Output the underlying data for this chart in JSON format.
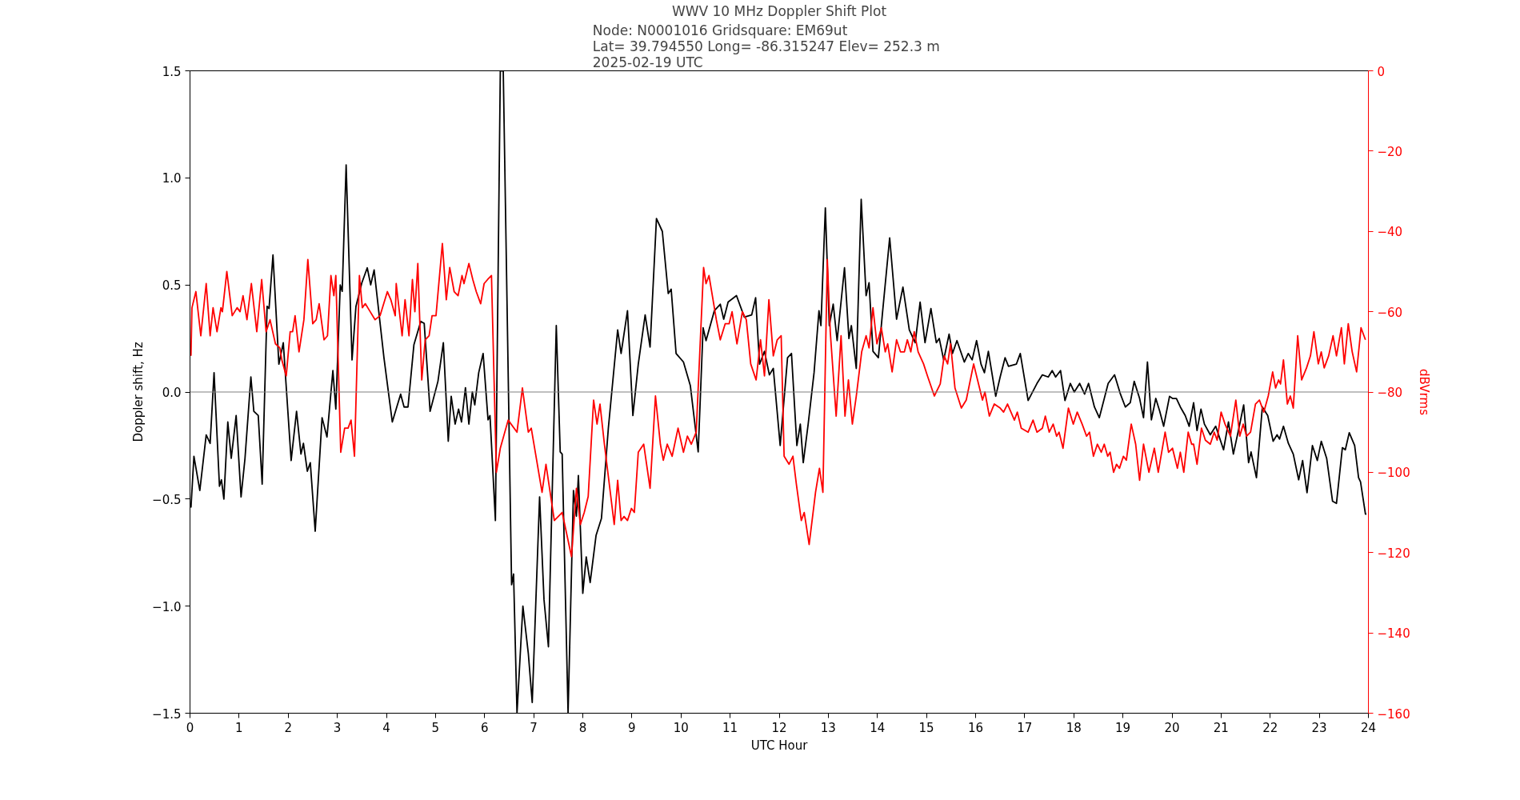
{
  "chart_data": {
    "type": "line",
    "title": "WWV 10 MHz Doppler Shift Plot",
    "subtitle": "Node:  N0001016     Gridsquare:  EM69ut\nLat= 39.794550    Long= -86.315247    Elev= 252.3 m\n2025-02-19  UTC",
    "xlabel": "UTC Hour",
    "ylabel": "Doppler shift, Hz",
    "y2label": "dBVrms",
    "xlim": [
      0,
      24
    ],
    "xticks": [
      0,
      1,
      2,
      3,
      4,
      5,
      6,
      7,
      8,
      9,
      10,
      11,
      12,
      13,
      14,
      15,
      16,
      17,
      18,
      19,
      20,
      21,
      22,
      23,
      24
    ],
    "ylim": [
      -1.5,
      1.5
    ],
    "yticks": [
      {
        "value": -1.5,
        "label": "−1.5"
      },
      {
        "value": -1.0,
        "label": "−1.0"
      },
      {
        "value": -0.5,
        "label": "−0.5"
      },
      {
        "value": 0.0,
        "label": "0.0"
      },
      {
        "value": 0.5,
        "label": "0.5"
      },
      {
        "value": 1.0,
        "label": "1.0"
      },
      {
        "value": 1.5,
        "label": "1.5"
      }
    ],
    "y2lim": [
      -160,
      0
    ],
    "y2ticks": [
      {
        "value": -160,
        "label": "−160"
      },
      {
        "value": -140,
        "label": "−140"
      },
      {
        "value": -120,
        "label": "−120"
      },
      {
        "value": -100,
        "label": "−100"
      },
      {
        "value": -80,
        "label": "−80"
      },
      {
        "value": -60,
        "label": "−60"
      },
      {
        "value": -40,
        "label": "−40"
      },
      {
        "value": -20,
        "label": "−20"
      },
      0
    ],
    "grid": false,
    "line_style": "solid",
    "marker": "none",
    "ref_lines": [
      {
        "axis": "y",
        "value": 0,
        "color": "#808080"
      }
    ],
    "series": [
      {
        "color": "#000000",
        "x": [
          0.02,
          0.08,
          0.2,
          0.33,
          0.41,
          0.49,
          0.6,
          0.64,
          0.69,
          0.77,
          0.84,
          0.94,
          1.04,
          1.12,
          1.24,
          1.3,
          1.39,
          1.47,
          1.57,
          1.61,
          1.69,
          1.81,
          1.9,
          2.06,
          2.17,
          2.26,
          2.31,
          2.39,
          2.45,
          2.55,
          2.69,
          2.79,
          2.91,
          2.97,
          3.06,
          3.1,
          3.18,
          3.3,
          3.38,
          3.5,
          3.61,
          3.68,
          3.75,
          3.95,
          4.12,
          4.29,
          4.36,
          4.44,
          4.56,
          4.7,
          4.77,
          4.89,
          5.05,
          5.16,
          5.26,
          5.32,
          5.4,
          5.47,
          5.53,
          5.61,
          5.68,
          5.75,
          5.8,
          5.88,
          5.97,
          6.07,
          6.11,
          6.22,
          6.32,
          6.38,
          6.55,
          6.59,
          6.66,
          6.78,
          6.89,
          6.97,
          7.12,
          7.21,
          7.3,
          7.46,
          7.54,
          7.58,
          7.7,
          7.81,
          7.87,
          7.91,
          8.0,
          8.07,
          8.15,
          8.27,
          8.38,
          8.52,
          8.71,
          8.78,
          8.91,
          9.02,
          9.13,
          9.27,
          9.37,
          9.5,
          9.62,
          9.74,
          9.8,
          9.9,
          10.05,
          10.19,
          10.35,
          10.45,
          10.51,
          10.68,
          10.8,
          10.87,
          10.96,
          11.13,
          11.29,
          11.44,
          11.52,
          11.6,
          11.7,
          11.8,
          11.88,
          12.02,
          12.17,
          12.25,
          12.36,
          12.43,
          12.49,
          12.59,
          12.71,
          12.81,
          12.85,
          12.94,
          13.02,
          13.1,
          13.18,
          13.33,
          13.42,
          13.47,
          13.57,
          13.67,
          13.77,
          13.83,
          13.91,
          14.02,
          14.1,
          14.25,
          14.39,
          14.52,
          14.65,
          14.77,
          14.87,
          14.97,
          15.09,
          15.2,
          15.26,
          15.35,
          15.46,
          15.53,
          15.62,
          15.77,
          15.85,
          15.93,
          16.02,
          16.11,
          16.18,
          16.26,
          16.41,
          16.5,
          16.6,
          16.67,
          16.83,
          16.91,
          17.07,
          17.25,
          17.36,
          17.48,
          17.56,
          17.63,
          17.73,
          17.82,
          17.93,
          18.01,
          18.12,
          18.22,
          18.3,
          18.42,
          18.52,
          18.7,
          18.83,
          18.95,
          19.05,
          19.15,
          19.23,
          19.34,
          19.42,
          19.5,
          19.58,
          19.67,
          19.75,
          19.83,
          19.95,
          20.01,
          20.09,
          20.17,
          20.27,
          20.35,
          20.44,
          20.51,
          20.59,
          20.66,
          20.78,
          20.89,
          21.05,
          21.15,
          21.25,
          21.38,
          21.46,
          21.56,
          21.61,
          21.72,
          21.84,
          21.95,
          22.06,
          22.14,
          22.19,
          22.27,
          22.37,
          22.47,
          22.58,
          22.66,
          22.75,
          22.86,
          22.96,
          23.04,
          23.15,
          23.27,
          23.35,
          23.47,
          23.53,
          23.61,
          23.72,
          23.8,
          23.84,
          23.94,
          23.96
        ],
        "values": [
          -0.54,
          -0.3,
          -0.46,
          -0.2,
          -0.24,
          0.09,
          -0.44,
          -0.41,
          -0.5,
          -0.14,
          -0.31,
          -0.11,
          -0.49,
          -0.31,
          0.07,
          -0.09,
          -0.11,
          -0.43,
          0.4,
          0.39,
          0.64,
          0.13,
          0.23,
          -0.32,
          -0.09,
          -0.29,
          -0.24,
          -0.37,
          -0.33,
          -0.65,
          -0.12,
          -0.21,
          0.1,
          -0.08,
          0.5,
          0.47,
          1.06,
          0.15,
          0.4,
          0.51,
          0.58,
          0.5,
          0.57,
          0.16,
          -0.14,
          -0.01,
          -0.07,
          -0.07,
          0.22,
          0.33,
          0.32,
          -0.09,
          0.05,
          0.23,
          -0.23,
          -0.02,
          -0.15,
          -0.08,
          -0.14,
          0.02,
          -0.15,
          0.0,
          -0.06,
          0.09,
          0.18,
          -0.13,
          -0.11,
          -0.6,
          1.5,
          1.5,
          -0.9,
          -0.85,
          -1.5,
          -1.0,
          -1.22,
          -1.45,
          -0.49,
          -0.97,
          -1.19,
          0.31,
          -0.28,
          -0.29,
          -1.5,
          -0.46,
          -0.58,
          -0.39,
          -0.94,
          -0.77,
          -0.89,
          -0.67,
          -0.59,
          -0.17,
          0.29,
          0.18,
          0.38,
          -0.11,
          0.13,
          0.36,
          0.21,
          0.81,
          0.75,
          0.46,
          0.48,
          0.18,
          0.14,
          0.03,
          -0.28,
          0.3,
          0.24,
          0.38,
          0.41,
          0.34,
          0.42,
          0.45,
          0.35,
          0.36,
          0.44,
          0.13,
          0.19,
          0.08,
          0.11,
          -0.25,
          0.16,
          0.18,
          -0.25,
          -0.15,
          -0.33,
          -0.15,
          0.09,
          0.38,
          0.31,
          0.86,
          0.31,
          0.41,
          0.24,
          0.58,
          0.25,
          0.31,
          0.11,
          0.9,
          0.45,
          0.51,
          0.19,
          0.16,
          0.36,
          0.72,
          0.34,
          0.49,
          0.29,
          0.23,
          0.42,
          0.23,
          0.39,
          0.23,
          0.25,
          0.15,
          0.27,
          0.18,
          0.24,
          0.14,
          0.18,
          0.15,
          0.24,
          0.13,
          0.09,
          0.19,
          -0.02,
          0.07,
          0.16,
          0.12,
          0.13,
          0.18,
          -0.04,
          0.04,
          0.08,
          0.07,
          0.1,
          0.07,
          0.1,
          -0.04,
          0.04,
          0.0,
          0.04,
          -0.01,
          0.04,
          -0.07,
          -0.12,
          0.04,
          0.08,
          -0.01,
          -0.07,
          -0.05,
          0.05,
          -0.03,
          -0.12,
          0.14,
          -0.13,
          -0.03,
          -0.09,
          -0.16,
          -0.02,
          -0.03,
          -0.03,
          -0.07,
          -0.11,
          -0.16,
          -0.05,
          -0.18,
          -0.08,
          -0.15,
          -0.2,
          -0.16,
          -0.27,
          -0.14,
          -0.29,
          -0.15,
          -0.06,
          -0.33,
          -0.28,
          -0.4,
          -0.07,
          -0.11,
          -0.23,
          -0.2,
          -0.22,
          -0.16,
          -0.24,
          -0.29,
          -0.41,
          -0.32,
          -0.47,
          -0.25,
          -0.32,
          -0.23,
          -0.31,
          -0.51,
          -0.52,
          -0.26,
          -0.27,
          -0.19,
          -0.25,
          -0.4,
          -0.42,
          -0.57,
          -0.57
        ]
      },
      {
        "color": "#ff0000",
        "axis": "y2",
        "x": [
          0.02,
          0.04,
          0.12,
          0.22,
          0.33,
          0.41,
          0.47,
          0.55,
          0.63,
          0.66,
          0.75,
          0.86,
          0.96,
          1.02,
          1.08,
          1.16,
          1.25,
          1.36,
          1.46,
          1.55,
          1.63,
          1.74,
          1.83,
          1.87,
          1.96,
          2.04,
          2.09,
          2.14,
          2.22,
          2.32,
          2.4,
          2.5,
          2.57,
          2.63,
          2.73,
          2.8,
          2.87,
          2.93,
          2.97,
          3.07,
          3.15,
          3.22,
          3.28,
          3.35,
          3.45,
          3.51,
          3.57,
          3.67,
          3.77,
          3.87,
          4.02,
          4.09,
          4.18,
          4.2,
          4.32,
          4.38,
          4.46,
          4.53,
          4.58,
          4.64,
          4.72,
          4.79,
          4.87,
          4.93,
          5.01,
          5.14,
          5.22,
          5.29,
          5.38,
          5.46,
          5.54,
          5.58,
          5.68,
          5.76,
          5.83,
          5.92,
          5.99,
          6.06,
          6.14,
          6.24,
          6.32,
          6.48,
          6.66,
          6.77,
          6.89,
          6.95,
          7.17,
          7.25,
          7.42,
          7.58,
          7.77,
          7.87,
          7.95,
          8.03,
          8.11,
          8.22,
          8.29,
          8.35,
          8.44,
          8.64,
          8.71,
          8.78,
          8.84,
          8.91,
          8.99,
          9.05,
          9.13,
          9.24,
          9.37,
          9.48,
          9.58,
          9.64,
          9.72,
          9.82,
          9.94,
          10.05,
          10.13,
          10.21,
          10.31,
          10.46,
          10.51,
          10.57,
          10.72,
          10.8,
          10.9,
          10.98,
          11.04,
          11.14,
          11.25,
          11.33,
          11.42,
          11.53,
          11.62,
          11.7,
          11.79,
          11.88,
          11.96,
          12.04,
          12.1,
          12.2,
          12.28,
          12.35,
          12.45,
          12.51,
          12.61,
          12.74,
          12.82,
          12.89,
          12.98,
          13.04,
          13.16,
          13.26,
          13.34,
          13.41,
          13.49,
          13.57,
          13.68,
          13.77,
          13.83,
          13.91,
          13.99,
          14.08,
          14.16,
          14.21,
          14.3,
          14.39,
          14.47,
          14.55,
          14.61,
          14.68,
          14.75,
          14.83,
          14.94,
          15.02,
          15.16,
          15.28,
          15.36,
          15.43,
          15.49,
          15.58,
          15.71,
          15.81,
          15.96,
          16.06,
          16.14,
          16.19,
          16.28,
          16.38,
          16.5,
          16.57,
          16.65,
          16.79,
          16.85,
          16.93,
          17.07,
          17.17,
          17.25,
          17.36,
          17.42,
          17.5,
          17.58,
          17.65,
          17.7,
          17.78,
          17.89,
          17.99,
          18.07,
          18.17,
          18.26,
          18.32,
          18.4,
          18.48,
          18.56,
          18.62,
          18.69,
          18.74,
          18.81,
          18.87,
          18.93,
          19.01,
          19.07,
          19.17,
          19.26,
          19.34,
          19.42,
          19.53,
          19.64,
          19.72,
          19.86,
          19.93,
          20.01,
          20.11,
          20.17,
          20.24,
          20.33,
          20.4,
          20.44,
          20.51,
          20.6,
          20.68,
          20.78,
          20.86,
          20.92,
          21.0,
          21.08,
          21.19,
          21.3,
          21.38,
          21.45,
          21.52,
          21.6,
          21.7,
          21.78,
          21.87,
          21.96,
          22.05,
          22.11,
          22.17,
          22.21,
          22.27,
          22.35,
          22.41,
          22.47,
          22.56,
          22.64,
          22.74,
          22.82,
          22.89,
          22.98,
          23.04,
          23.1,
          23.19,
          23.28,
          23.35,
          23.45,
          23.51,
          23.59,
          23.67,
          23.76,
          23.85,
          23.94
        ],
        "values": [
          -71,
          -59,
          -55,
          -66,
          -53,
          -66,
          -59,
          -65,
          -59,
          -60,
          -50,
          -61,
          -59,
          -60,
          -56,
          -62,
          -53,
          -65,
          -52,
          -65,
          -62,
          -68,
          -69,
          -72,
          -76,
          -65,
          -65,
          -61,
          -70,
          -62,
          -47,
          -63,
          -62,
          -58,
          -67,
          -66,
          -51,
          -56,
          -51,
          -95,
          -89,
          -89,
          -87,
          -96,
          -51,
          -59,
          -58,
          -60,
          -62,
          -61,
          -55,
          -57,
          -61,
          -53,
          -66,
          -57,
          -66,
          -52,
          -60,
          -48,
          -77,
          -67,
          -66,
          -61,
          -61,
          -43,
          -57,
          -49,
          -55,
          -56,
          -51,
          -53,
          -48,
          -52,
          -55,
          -58,
          -53,
          -52,
          -51,
          -100,
          -94,
          -87,
          -90,
          -79,
          -90,
          -89,
          -105,
          -98,
          -112,
          -110,
          -121,
          -104,
          -113,
          -110,
          -106,
          -82,
          -88,
          -83,
          -93,
          -113,
          -102,
          -112,
          -111,
          -112,
          -109,
          -110,
          -95,
          -93,
          -104,
          -81,
          -93,
          -97,
          -93,
          -96,
          -89,
          -95,
          -91,
          -93,
          -90,
          -49,
          -53,
          -51,
          -62,
          -67,
          -63,
          -63,
          -60,
          -68,
          -60,
          -62,
          -73,
          -77,
          -67,
          -76,
          -57,
          -71,
          -67,
          -66,
          -96,
          -98,
          -96,
          -103,
          -112,
          -110,
          -118,
          -105,
          -99,
          -105,
          -47,
          -65,
          -86,
          -66,
          -86,
          -77,
          -88,
          -81,
          -70,
          -66,
          -69,
          -59,
          -68,
          -64,
          -70,
          -68,
          -75,
          -67,
          -70,
          -70,
          -67,
          -70,
          -65,
          -70,
          -73,
          -76,
          -81,
          -78,
          -71,
          -73,
          -68,
          -79,
          -84,
          -82,
          -73,
          -78,
          -82,
          -80,
          -86,
          -83,
          -84,
          -85,
          -83,
          -87,
          -85,
          -89,
          -90,
          -87,
          -90,
          -89,
          -86,
          -90,
          -88,
          -91,
          -90,
          -94,
          -84,
          -88,
          -85,
          -88,
          -91,
          -90,
          -96,
          -93,
          -95,
          -93,
          -96,
          -95,
          -100,
          -98,
          -99,
          -96,
          -97,
          -88,
          -93,
          -102,
          -93,
          -100,
          -94,
          -100,
          -90,
          -95,
          -94,
          -99,
          -95,
          -100,
          -90,
          -93,
          -93,
          -98,
          -89,
          -92,
          -93,
          -90,
          -92,
          -85,
          -88,
          -91,
          -82,
          -91,
          -88,
          -91,
          -90,
          -83,
          -82,
          -85,
          -81,
          -75,
          -79,
          -77,
          -78,
          -72,
          -83,
          -81,
          -84,
          -66,
          -77,
          -74,
          -71,
          -65,
          -73,
          -70,
          -74,
          -71,
          -66,
          -71,
          -64,
          -73,
          -63,
          -70,
          -75,
          -64,
          -67
        ]
      }
    ]
  }
}
